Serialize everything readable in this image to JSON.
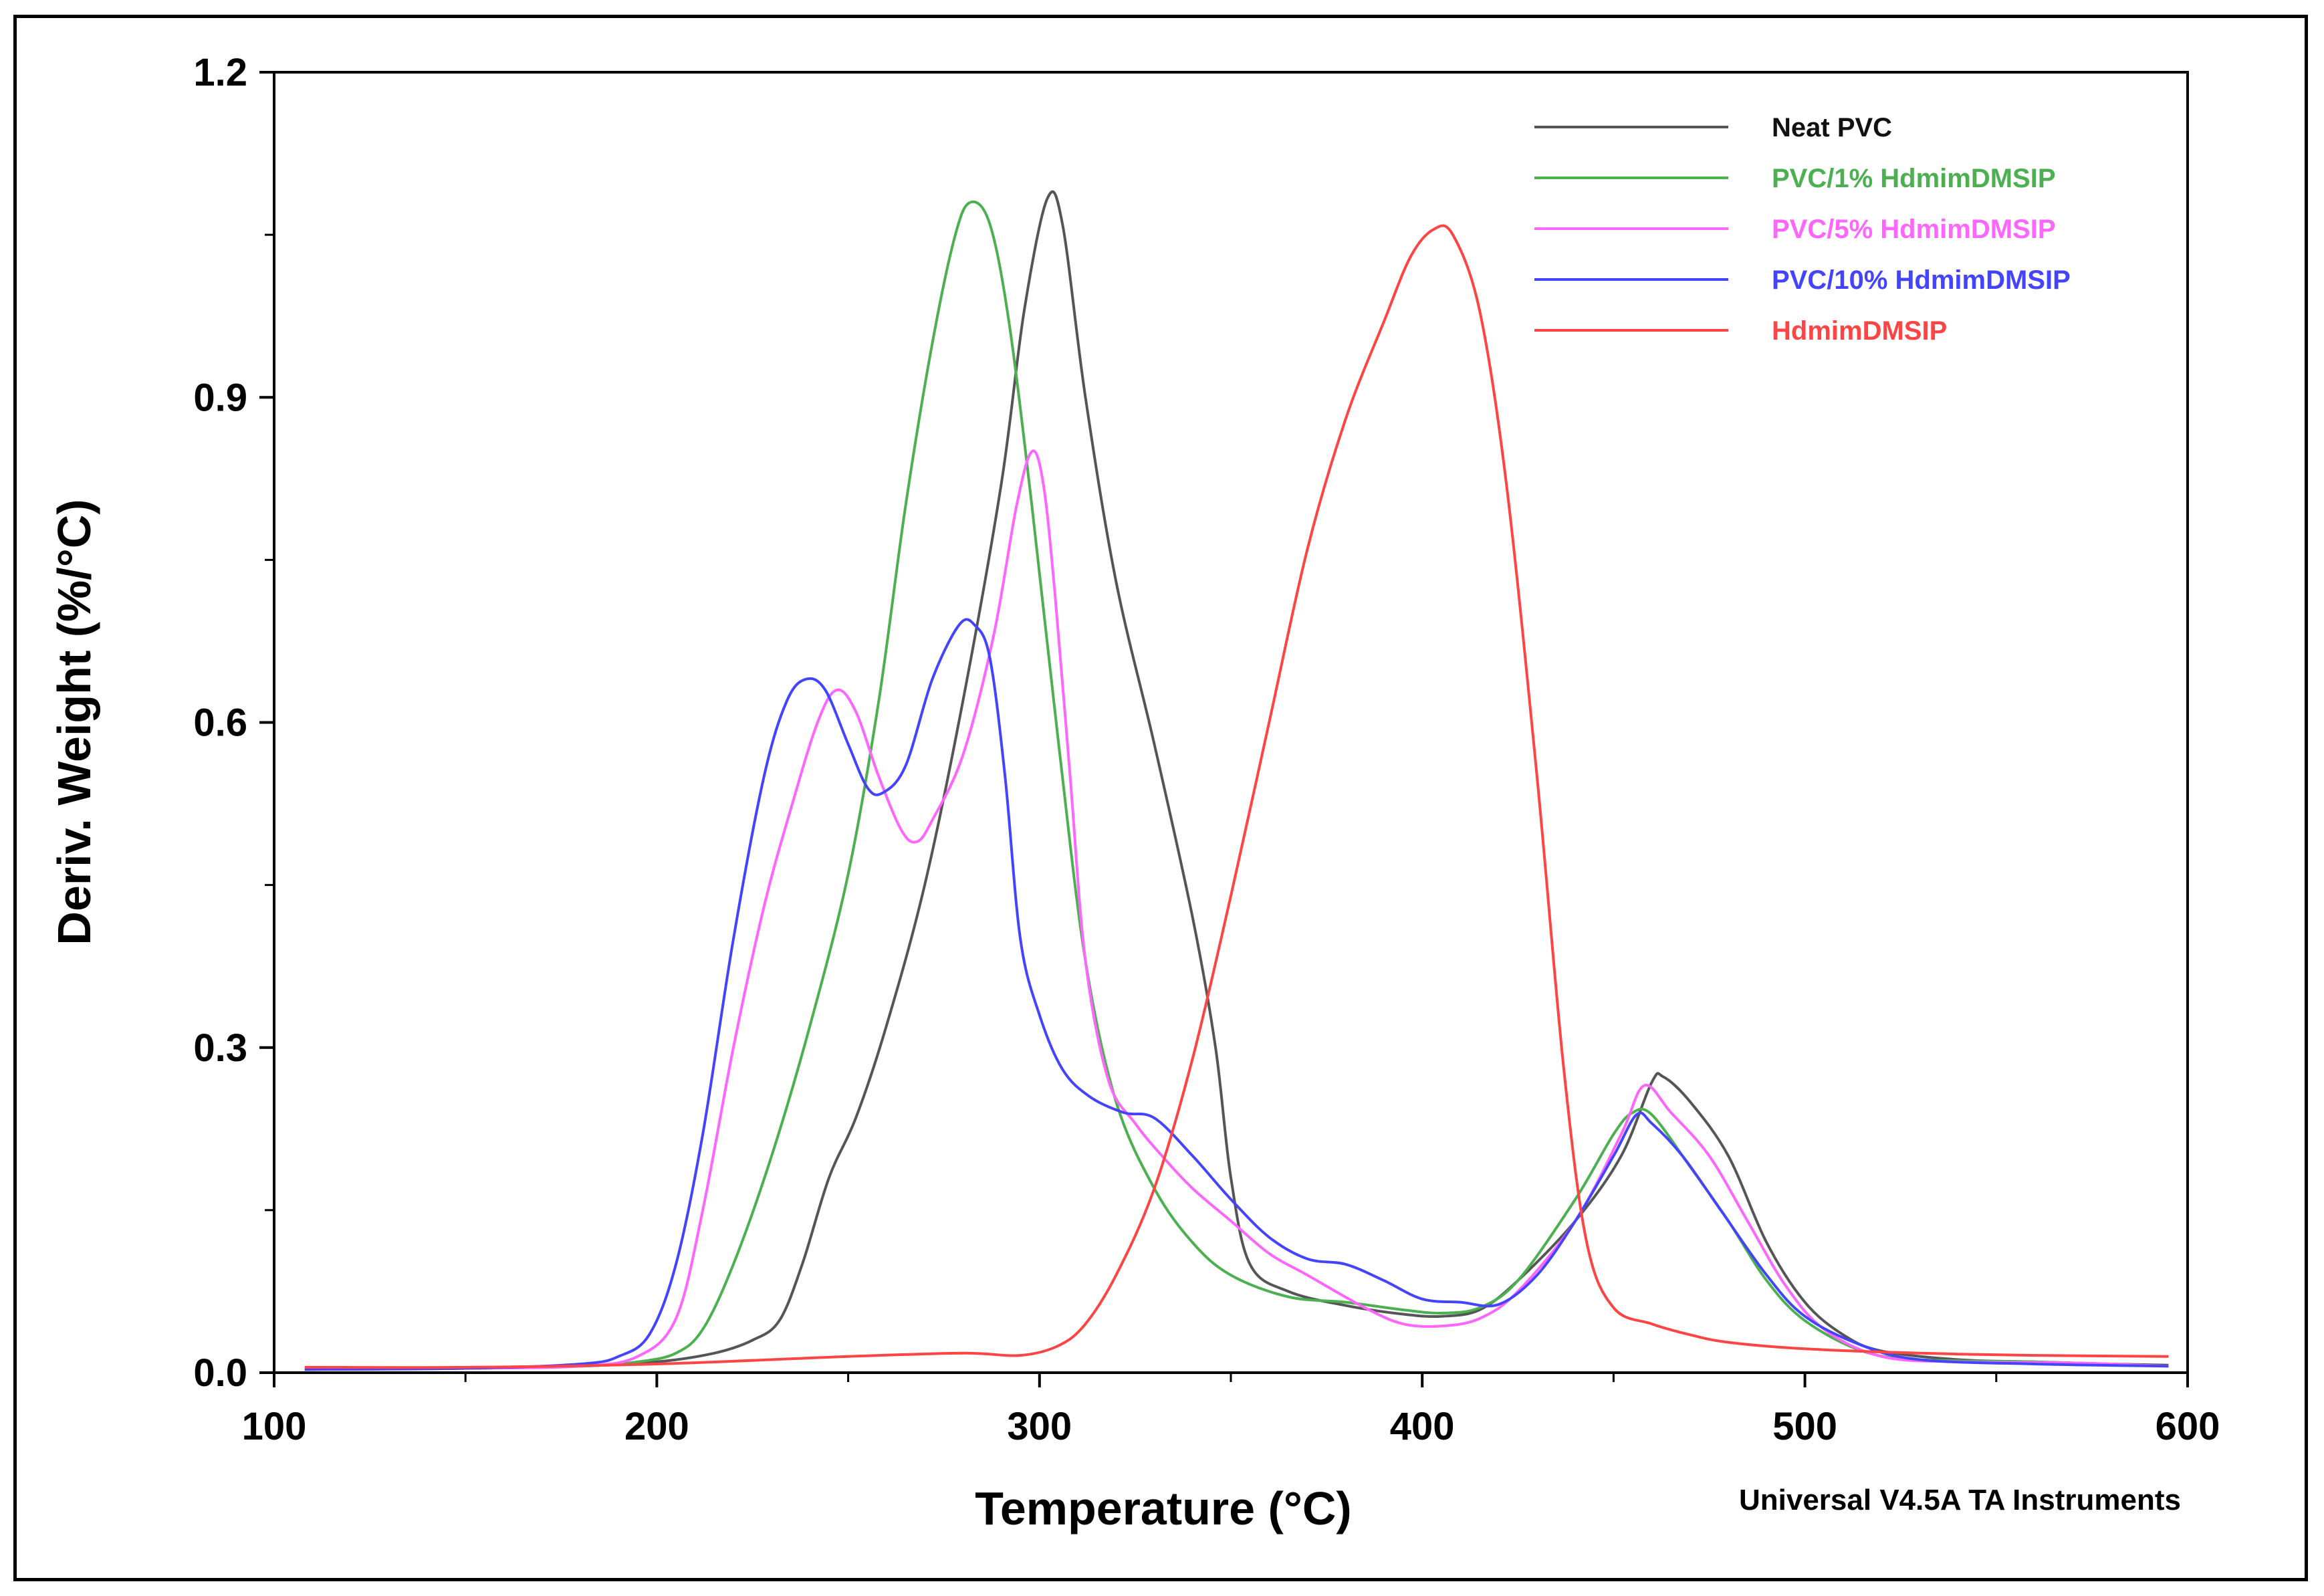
{
  "chart_data": {
    "type": "line",
    "title": "",
    "xlabel": "Temperature (°C)",
    "ylabel": "Deriv. Weight (%/°C)",
    "xlim": [
      100,
      600
    ],
    "ylim": [
      0,
      1.2
    ],
    "xticks": [
      100,
      200,
      300,
      400,
      500,
      600
    ],
    "xtick_labels": [
      "100",
      "200",
      "300",
      "400",
      "500",
      "600"
    ],
    "yticks": [
      0,
      0.3,
      0.6,
      0.9,
      1.2
    ],
    "ytick_labels": [
      "0.0",
      "0.3",
      "0.6",
      "0.9",
      "1.2"
    ],
    "grid": false,
    "legend_position": "top-right",
    "footer": "Universal V4.5A TA Instruments",
    "series": [
      {
        "name": "Neat PVC",
        "color": "#555555",
        "points": [
          [
            108,
            0.003
          ],
          [
            150,
            0.004
          ],
          [
            180,
            0.006
          ],
          [
            200,
            0.01
          ],
          [
            215,
            0.018
          ],
          [
            225,
            0.03
          ],
          [
            232,
            0.048
          ],
          [
            238,
            0.1
          ],
          [
            245,
            0.18
          ],
          [
            252,
            0.235
          ],
          [
            260,
            0.32
          ],
          [
            270,
            0.45
          ],
          [
            280,
            0.62
          ],
          [
            290,
            0.82
          ],
          [
            296,
            0.98
          ],
          [
            302,
            1.083
          ],
          [
            306,
            1.06
          ],
          [
            312,
            0.9
          ],
          [
            320,
            0.73
          ],
          [
            330,
            0.58
          ],
          [
            340,
            0.42
          ],
          [
            346,
            0.3
          ],
          [
            350,
            0.18
          ],
          [
            355,
            0.1
          ],
          [
            365,
            0.075
          ],
          [
            380,
            0.062
          ],
          [
            395,
            0.054
          ],
          [
            405,
            0.052
          ],
          [
            415,
            0.058
          ],
          [
            425,
            0.085
          ],
          [
            440,
            0.14
          ],
          [
            452,
            0.2
          ],
          [
            460,
            0.268
          ],
          [
            463,
            0.273
          ],
          [
            470,
            0.25
          ],
          [
            480,
            0.2
          ],
          [
            490,
            0.12
          ],
          [
            500,
            0.065
          ],
          [
            510,
            0.035
          ],
          [
            520,
            0.02
          ],
          [
            540,
            0.012
          ],
          [
            560,
            0.01
          ],
          [
            580,
            0.008
          ],
          [
            595,
            0.007
          ]
        ]
      },
      {
        "name": "PVC/1% HdmimDMSIP",
        "color": "#4caf50",
        "points": [
          [
            108,
            0.003
          ],
          [
            150,
            0.004
          ],
          [
            180,
            0.006
          ],
          [
            195,
            0.01
          ],
          [
            205,
            0.018
          ],
          [
            212,
            0.04
          ],
          [
            220,
            0.1
          ],
          [
            230,
            0.2
          ],
          [
            240,
            0.32
          ],
          [
            250,
            0.46
          ],
          [
            258,
            0.62
          ],
          [
            265,
            0.8
          ],
          [
            272,
            0.95
          ],
          [
            278,
            1.05
          ],
          [
            282,
            1.08
          ],
          [
            287,
            1.06
          ],
          [
            292,
            0.97
          ],
          [
            298,
            0.8
          ],
          [
            305,
            0.58
          ],
          [
            312,
            0.38
          ],
          [
            320,
            0.25
          ],
          [
            330,
            0.17
          ],
          [
            340,
            0.12
          ],
          [
            350,
            0.09
          ],
          [
            365,
            0.07
          ],
          [
            380,
            0.065
          ],
          [
            395,
            0.058
          ],
          [
            405,
            0.055
          ],
          [
            415,
            0.06
          ],
          [
            425,
            0.085
          ],
          [
            440,
            0.16
          ],
          [
            450,
            0.22
          ],
          [
            455,
            0.24
          ],
          [
            460,
            0.238
          ],
          [
            470,
            0.19
          ],
          [
            480,
            0.14
          ],
          [
            490,
            0.085
          ],
          [
            500,
            0.048
          ],
          [
            515,
            0.02
          ],
          [
            530,
            0.012
          ],
          [
            560,
            0.01
          ],
          [
            595,
            0.006
          ]
        ]
      },
      {
        "name": "PVC/5% HdmimDMSIP",
        "color": "#ff66ff",
        "points": [
          [
            108,
            0.003
          ],
          [
            150,
            0.004
          ],
          [
            180,
            0.006
          ],
          [
            195,
            0.015
          ],
          [
            205,
            0.05
          ],
          [
            212,
            0.15
          ],
          [
            220,
            0.3
          ],
          [
            228,
            0.43
          ],
          [
            235,
            0.52
          ],
          [
            242,
            0.6
          ],
          [
            247,
            0.63
          ],
          [
            252,
            0.61
          ],
          [
            258,
            0.55
          ],
          [
            264,
            0.5
          ],
          [
            268,
            0.49
          ],
          [
            272,
            0.51
          ],
          [
            280,
            0.57
          ],
          [
            288,
            0.68
          ],
          [
            294,
            0.8
          ],
          [
            298,
            0.85
          ],
          [
            301,
            0.82
          ],
          [
            304,
            0.72
          ],
          [
            308,
            0.55
          ],
          [
            312,
            0.38
          ],
          [
            318,
            0.27
          ],
          [
            325,
            0.23
          ],
          [
            332,
            0.2
          ],
          [
            340,
            0.17
          ],
          [
            350,
            0.14
          ],
          [
            360,
            0.11
          ],
          [
            370,
            0.09
          ],
          [
            385,
            0.06
          ],
          [
            395,
            0.045
          ],
          [
            405,
            0.043
          ],
          [
            415,
            0.05
          ],
          [
            425,
            0.075
          ],
          [
            440,
            0.14
          ],
          [
            452,
            0.22
          ],
          [
            458,
            0.265
          ],
          [
            465,
            0.24
          ],
          [
            475,
            0.2
          ],
          [
            485,
            0.14
          ],
          [
            495,
            0.08
          ],
          [
            505,
            0.04
          ],
          [
            520,
            0.015
          ],
          [
            540,
            0.01
          ],
          [
            570,
            0.009
          ],
          [
            595,
            0.006
          ]
        ]
      },
      {
        "name": "PVC/10% HdmimDMSIP",
        "color": "#4444ff",
        "points": [
          [
            108,
            0.003
          ],
          [
            150,
            0.004
          ],
          [
            180,
            0.008
          ],
          [
            190,
            0.015
          ],
          [
            198,
            0.035
          ],
          [
            205,
            0.1
          ],
          [
            212,
            0.22
          ],
          [
            220,
            0.4
          ],
          [
            228,
            0.55
          ],
          [
            234,
            0.62
          ],
          [
            239,
            0.64
          ],
          [
            244,
            0.63
          ],
          [
            250,
            0.58
          ],
          [
            255,
            0.54
          ],
          [
            259,
            0.535
          ],
          [
            265,
            0.56
          ],
          [
            272,
            0.64
          ],
          [
            279,
            0.69
          ],
          [
            283,
            0.69
          ],
          [
            287,
            0.66
          ],
          [
            291,
            0.55
          ],
          [
            295,
            0.4
          ],
          [
            300,
            0.33
          ],
          [
            306,
            0.28
          ],
          [
            313,
            0.255
          ],
          [
            322,
            0.24
          ],
          [
            330,
            0.235
          ],
          [
            340,
            0.2
          ],
          [
            350,
            0.16
          ],
          [
            360,
            0.125
          ],
          [
            370,
            0.105
          ],
          [
            380,
            0.1
          ],
          [
            390,
            0.085
          ],
          [
            400,
            0.068
          ],
          [
            410,
            0.065
          ],
          [
            420,
            0.063
          ],
          [
            430,
            0.09
          ],
          [
            440,
            0.14
          ],
          [
            450,
            0.2
          ],
          [
            456,
            0.238
          ],
          [
            460,
            0.23
          ],
          [
            468,
            0.2
          ],
          [
            478,
            0.15
          ],
          [
            490,
            0.09
          ],
          [
            500,
            0.052
          ],
          [
            515,
            0.025
          ],
          [
            530,
            0.012
          ],
          [
            560,
            0.008
          ],
          [
            595,
            0.006
          ]
        ]
      },
      {
        "name": "HdmimDMSIP",
        "color": "#ff4444",
        "points": [
          [
            108,
            0.005
          ],
          [
            150,
            0.005
          ],
          [
            200,
            0.008
          ],
          [
            250,
            0.015
          ],
          [
            280,
            0.018
          ],
          [
            295,
            0.016
          ],
          [
            305,
            0.025
          ],
          [
            312,
            0.045
          ],
          [
            320,
            0.09
          ],
          [
            330,
            0.17
          ],
          [
            340,
            0.29
          ],
          [
            350,
            0.44
          ],
          [
            360,
            0.6
          ],
          [
            370,
            0.76
          ],
          [
            380,
            0.88
          ],
          [
            390,
            0.97
          ],
          [
            397,
            1.03
          ],
          [
            403,
            1.055
          ],
          [
            408,
            1.05
          ],
          [
            415,
            0.98
          ],
          [
            422,
            0.82
          ],
          [
            430,
            0.55
          ],
          [
            437,
            0.28
          ],
          [
            443,
            0.12
          ],
          [
            450,
            0.06
          ],
          [
            460,
            0.045
          ],
          [
            470,
            0.035
          ],
          [
            480,
            0.028
          ],
          [
            500,
            0.022
          ],
          [
            530,
            0.018
          ],
          [
            560,
            0.016
          ],
          [
            595,
            0.015
          ]
        ]
      }
    ]
  }
}
